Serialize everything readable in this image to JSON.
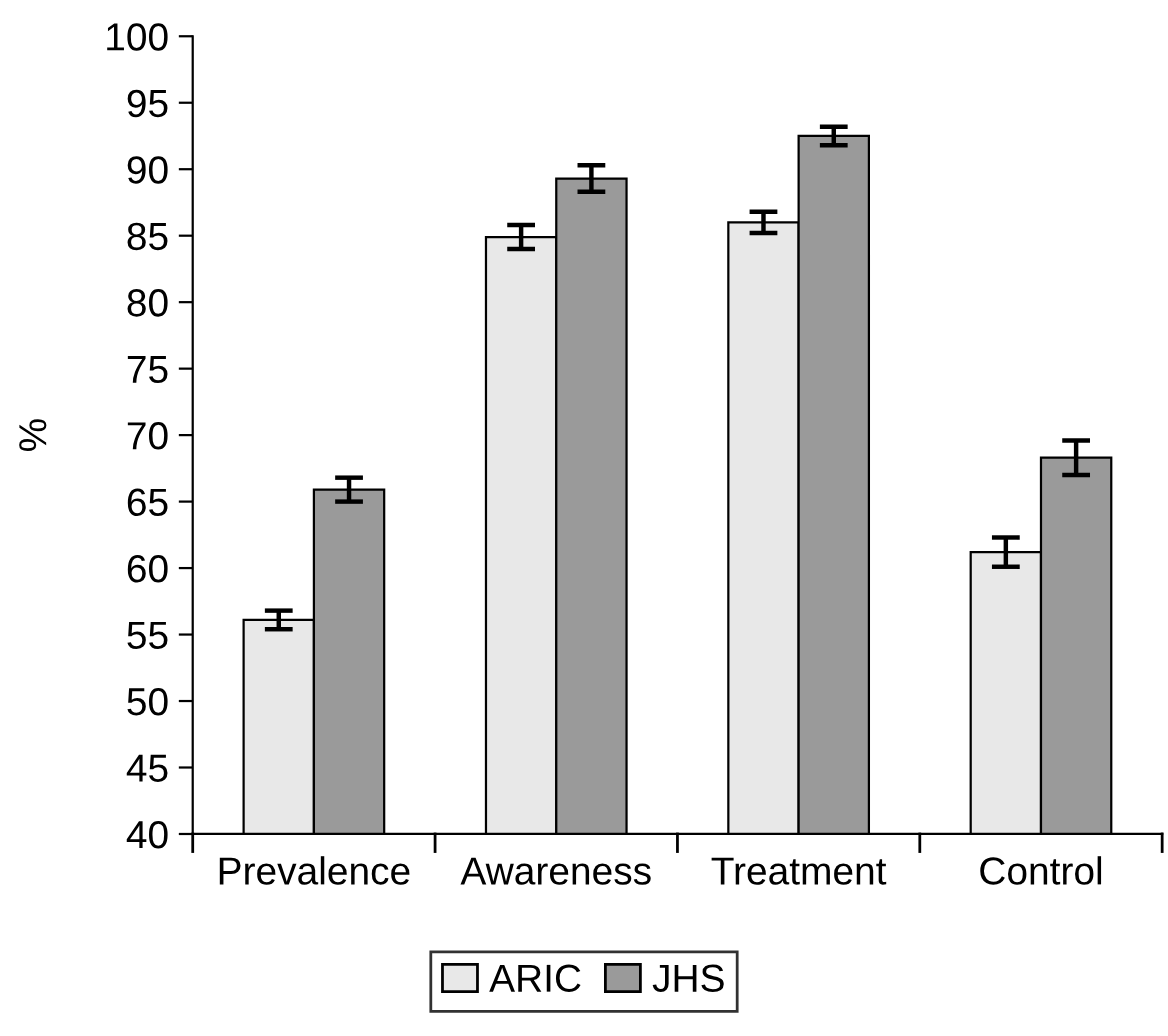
{
  "chart_data": {
    "type": "bar",
    "ylabel": "%",
    "categories": [
      "Prevalence",
      "Awareness",
      "Treatment",
      "Control"
    ],
    "series": [
      {
        "name": "ARIC",
        "color": "#e8e8e8",
        "values": [
          56.1,
          84.9,
          86.0,
          61.2
        ],
        "errors": [
          0.7,
          0.9,
          0.8,
          1.1
        ]
      },
      {
        "name": "JHS",
        "color": "#9a9a9a",
        "values": [
          65.9,
          89.3,
          92.5,
          68.3
        ],
        "errors": [
          0.9,
          1.0,
          0.7,
          1.3
        ]
      }
    ],
    "ylim": [
      40,
      100
    ],
    "yticks": [
      40,
      45,
      50,
      55,
      60,
      65,
      70,
      75,
      80,
      85,
      90,
      95,
      100
    ],
    "grid": false,
    "legend": "bottom"
  }
}
